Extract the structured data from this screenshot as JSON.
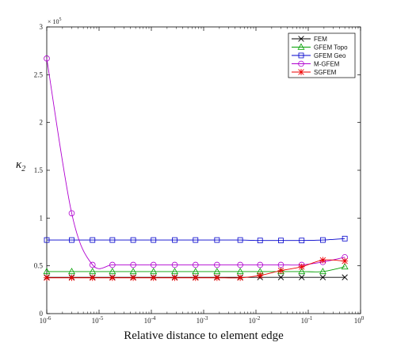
{
  "chart_data": {
    "type": "line",
    "xscale": "log",
    "xlim": [
      1e-06,
      1
    ],
    "ylim": [
      0,
      300000
    ],
    "x_exponent_ticks": [
      "-6",
      "-5",
      "-4",
      "-3",
      "-2",
      "-1",
      "0"
    ],
    "x_tick_base": "10",
    "y_ticks": [
      0,
      0.5,
      1,
      1.5,
      2,
      2.5,
      3
    ],
    "y_multiplier_base": "× 10",
    "y_multiplier_exp": "5",
    "xlabel": "Relative distance to element edge",
    "ylabel_main": "κ",
    "ylabel_sub": "2",
    "legend_position": "top-right",
    "x": [
      1e-06,
      3e-06,
      7.5e-06,
      1.8e-05,
      4.5e-05,
      0.00011,
      0.00028,
      0.0007,
      0.0018,
      0.005,
      0.012,
      0.03,
      0.075,
      0.19,
      0.5
    ],
    "series": [
      {
        "name": "FEM",
        "color": "#000000",
        "marker": "x",
        "values": [
          38000,
          38000,
          38000,
          38000,
          38000,
          38000,
          38000,
          38000,
          38000,
          38000,
          38000,
          38000,
          38000,
          38000,
          38000
        ]
      },
      {
        "name": "GFEM Topo",
        "color": "#00a000",
        "marker": "triangle",
        "values": [
          44000,
          44000,
          44000,
          44000,
          44000,
          44000,
          44000,
          44000,
          44000,
          44000,
          44000,
          44000,
          44000,
          44000,
          49000
        ]
      },
      {
        "name": "GFEM Geo",
        "color": "#0000cc",
        "marker": "square",
        "values": [
          77000,
          77000,
          77000,
          77000,
          77000,
          77000,
          77000,
          77000,
          77000,
          77000,
          76500,
          76500,
          76500,
          77000,
          78500
        ]
      },
      {
        "name": "M-GFEM",
        "color": "#b000d0",
        "marker": "circle",
        "values": [
          267000,
          105000,
          51000,
          51000,
          51000,
          51000,
          51000,
          51000,
          51000,
          51000,
          51000,
          51000,
          51000,
          54000,
          59000
        ]
      },
      {
        "name": "SGFEM",
        "color": "#ee0000",
        "marker": "asterisk",
        "values": [
          37500,
          37500,
          37500,
          37500,
          37500,
          37500,
          37500,
          37500,
          37500,
          37500,
          40000,
          45000,
          49000,
          56000,
          55000
        ]
      }
    ]
  }
}
